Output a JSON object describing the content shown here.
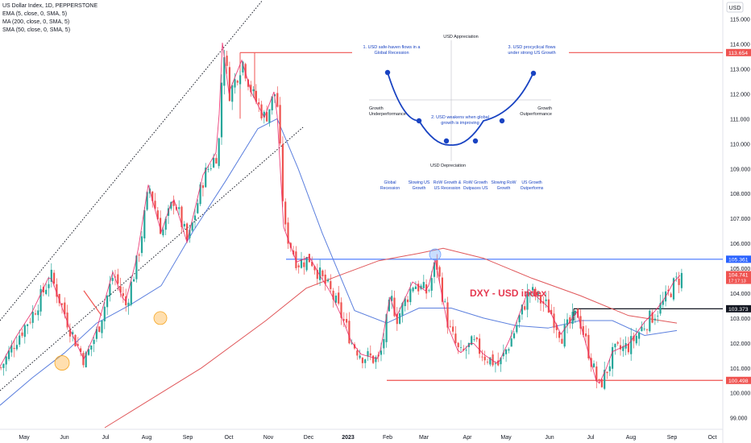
{
  "header": {
    "title": "US Dollar Index, 1D, PEPPERSTONE",
    "indicators": [
      "EMA (5, close, 0, SMA, 5)",
      "MA (200, close, 0, SMA, 5)",
      "SMA (50, close, 0, SMA, 5)"
    ],
    "currency_badge": "USD"
  },
  "annotation_label": "DXY - USD index",
  "diagram": {
    "top": "USD Appreciation",
    "bottom": "USD Depreciation",
    "left": "Growth Underperformance",
    "right": "Growth Outperformance",
    "callout_1": "1. USD safe-haven flows in a Global Recession",
    "callout_2": "2. USD weakens when global growth is improving",
    "callout_3": "3. USD procyclical flows under strong US Growth",
    "stages": [
      "Global Recession",
      "Slowing US Growth",
      "RoW Growth & US Recession",
      "RoW Growth Outpaces US",
      "Slowing RoW Growth",
      "US Growth Outperforms"
    ]
  },
  "chart_data": {
    "type": "line",
    "x_axis": {
      "ticks": [
        "May",
        "Jun",
        "Jul",
        "Aug",
        "Sep",
        "Oct",
        "Nov",
        "Dec",
        "2023",
        "Feb",
        "Mar",
        "Apr",
        "May",
        "Jun",
        "Jul",
        "Aug",
        "Sep",
        "Oct"
      ]
    },
    "y_axis": {
      "ticks": [
        99.0,
        100.0,
        101.0,
        102.0,
        103.0,
        104.0,
        105.0,
        106.0,
        107.0,
        108.0,
        109.0,
        110.0,
        111.0,
        112.0,
        113.0,
        114.0,
        115.0
      ],
      "ylim": [
        98.6,
        115.7
      ]
    },
    "series": [
      {
        "key": "price",
        "color": "#26a69a",
        "color_down": "#ef5350",
        "x": [
          0,
          20,
          40,
          62,
          88,
          104,
          120,
          140,
          155,
          170,
          184,
          200,
          215,
          232,
          252,
          270,
          276,
          284,
          300,
          312,
          328,
          342,
          352,
          368,
          384,
          398,
          410,
          424,
          436,
          448,
          470,
          484,
          492,
          512,
          530,
          540,
          556,
          570,
          586,
          600,
          618,
          634,
          656,
          680,
          696,
          716,
          742,
          752,
          760,
          780,
          800,
          815,
          826,
          836,
          845
        ],
        "values": [
          101.0,
          102.2,
          103.2,
          104.7,
          102.4,
          101.3,
          102.5,
          104.8,
          103.5,
          105.4,
          108.3,
          106.4,
          107.8,
          106.0,
          108.7,
          109.7,
          114.0,
          112.0,
          113.3,
          112.0,
          111.0,
          112.2,
          106.6,
          105.2,
          105.4,
          104.6,
          104.0,
          103.0,
          102.0,
          101.5,
          101.3,
          103.8,
          103.0,
          104.4,
          104.0,
          105.3,
          102.6,
          101.5,
          102.0,
          101.5,
          101.1,
          102.2,
          104.1,
          103.4,
          102.3,
          103.2,
          100.2,
          100.9,
          101.6,
          101.9,
          102.8,
          103.3,
          103.8,
          104.4,
          104.7
        ]
      },
      {
        "key": "sma50",
        "color": "#5b7fde",
        "x": [
          0,
          40,
          80,
          120,
          160,
          200,
          240,
          280,
          320,
          344,
          370,
          400,
          440,
          480,
          520,
          560,
          600,
          640,
          680,
          720,
          760,
          800,
          840
        ],
        "values": [
          99.5,
          100.6,
          101.6,
          102.8,
          103.5,
          104.3,
          106.5,
          108.5,
          110.6,
          111.0,
          109.0,
          106.4,
          103.3,
          102.8,
          103.4,
          103.4,
          103.0,
          102.7,
          102.6,
          102.9,
          102.9,
          102.3,
          102.5
        ]
      },
      {
        "key": "ma200",
        "color": "#e0575a",
        "x": [
          130,
          250,
          330,
          380,
          420,
          470,
          520,
          550,
          600,
          660,
          720,
          780,
          840
        ],
        "values": [
          98.6,
          101.0,
          102.9,
          104.2,
          104.7,
          105.3,
          105.6,
          105.8,
          105.4,
          104.6,
          103.9,
          103.1,
          102.8
        ]
      }
    ],
    "levels": [
      {
        "label": "113.654",
        "value": 113.654,
        "color": "#ef5350"
      },
      {
        "label": "105.361",
        "value": 105.361,
        "color": "#2962ff"
      },
      {
        "label": "104.741",
        "value": 104.741,
        "color": "#ef5350"
      },
      {
        "label": "103.373",
        "value": 103.373,
        "color": "#131722"
      },
      {
        "label": "100.498",
        "value": 100.498,
        "color": "#ef5350"
      }
    ],
    "price_time_label": "17:17:13"
  }
}
